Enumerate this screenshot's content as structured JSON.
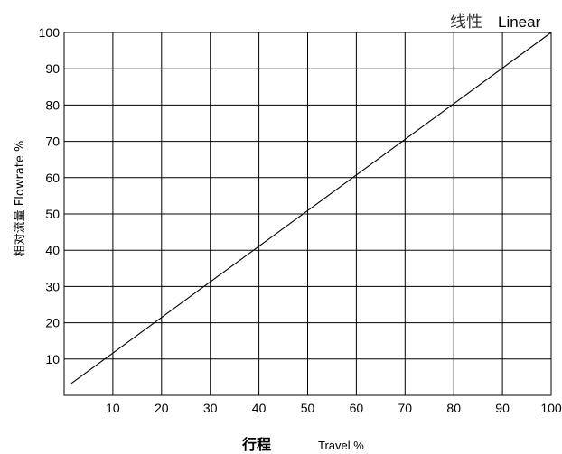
{
  "chart_data": {
    "type": "line",
    "title_cn": "线性",
    "title_en": "Linear",
    "xlabel_cn": "行程",
    "xlabel_en": "Travel %",
    "ylabel": "相对流量 Flowrate %",
    "xlim": [
      0,
      100
    ],
    "ylim": [
      0,
      100
    ],
    "x_ticks": [
      10,
      20,
      30,
      40,
      50,
      60,
      70,
      80,
      90,
      100
    ],
    "y_ticks": [
      10,
      20,
      30,
      40,
      50,
      60,
      70,
      80,
      90,
      100
    ],
    "grid": true,
    "series": [
      {
        "x": [
          1.5,
          100
        ],
        "y": [
          3.3,
          100
        ],
        "color": "#000000"
      }
    ]
  }
}
